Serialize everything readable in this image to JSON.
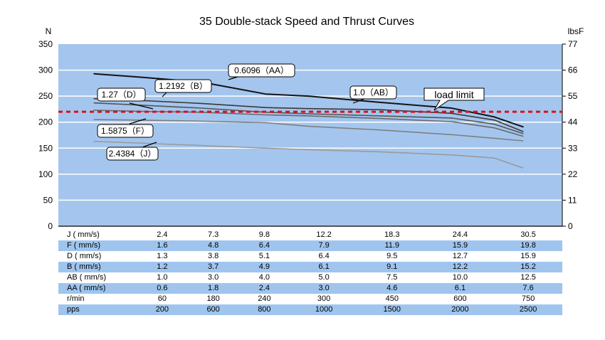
{
  "chart_data": {
    "type": "line",
    "title": "35 Double-stack Speed and Thrust Curves",
    "ylabel_left": "N",
    "ylabel_right": "lbsF",
    "ylim": [
      0,
      350
    ],
    "yticks_left": [
      0,
      50,
      100,
      150,
      200,
      250,
      300,
      350
    ],
    "yticks_right": [
      "0",
      "11",
      "22",
      "33",
      "44",
      "55",
      "66",
      "77"
    ],
    "x_positions": [
      1,
      2,
      3,
      4,
      5,
      6,
      7
    ],
    "xlim": [
      0.5,
      7.55
    ],
    "grid": true,
    "load_limit": {
      "label": "load limit",
      "value": 220
    },
    "series": [
      {
        "name": "0.6096 (AA)",
        "color": "#141414",
        "x": [
          1,
          1.6,
          2.5,
          3.4,
          4,
          5,
          6,
          6.6,
          7
        ],
        "y": [
          293,
          287,
          277,
          254,
          250,
          238,
          227,
          210,
          191
        ]
      },
      {
        "name": "1.0 (AB)",
        "color": "#3a3a3a",
        "x": [
          1,
          1.6,
          2.5,
          3.4,
          4,
          5,
          6,
          6.6,
          7
        ],
        "y": [
          245,
          242,
          236,
          228,
          226,
          224,
          217,
          204,
          182
        ]
      },
      {
        "name": "1.2192 (B)",
        "color": "#555555",
        "x": [
          1,
          1.6,
          2.5,
          3.4,
          4,
          5,
          6,
          6.6,
          7
        ],
        "y": [
          237,
          233,
          227,
          219,
          216,
          212,
          208,
          196,
          178
        ]
      },
      {
        "name": "1.27 (D)",
        "color": "#6a6a6a",
        "x": [
          1,
          1.6,
          2.5,
          3.4,
          4,
          5,
          6,
          6.6,
          7
        ],
        "y": [
          223,
          221,
          219,
          214,
          212,
          207,
          201,
          189,
          173
        ]
      },
      {
        "name": "1.5875 (F)",
        "color": "#808080",
        "x": [
          1,
          1.6,
          2.5,
          3.4,
          4,
          5,
          6,
          6.6,
          7
        ],
        "y": [
          205,
          204,
          202,
          199,
          192,
          185,
          176,
          169,
          164
        ]
      },
      {
        "name": "2.4384 (J)",
        "color": "#9a9a9a",
        "x": [
          1,
          1.6,
          2.5,
          3.4,
          4,
          5,
          6,
          6.6,
          7
        ],
        "y": [
          163,
          160,
          155,
          150,
          147,
          143,
          137,
          131,
          112
        ]
      }
    ],
    "annotations": [
      {
        "text": "0.6096（AA）",
        "series": "0.6096 (AA)"
      },
      {
        "text": "1.2192（B）",
        "series": "1.2192 (B)"
      },
      {
        "text": "1.27（D）",
        "series": "1.27 (D)"
      },
      {
        "text": "1.0（AB）",
        "series": "1.0 (AB)"
      },
      {
        "text": "1.5875（F）",
        "series": "1.5875 (F)"
      },
      {
        "text": "2.4384（J）",
        "series": "2.4384 (J)"
      }
    ],
    "speed_table": [
      {
        "label": "J ( mm/s)",
        "values": [
          "2.4",
          "7.3",
          "9.8",
          "12.2",
          "18.3",
          "24.4",
          "30.5"
        ]
      },
      {
        "label": "F ( mm/s)",
        "values": [
          "1.6",
          "4.8",
          "6.4",
          "7.9",
          "11.9",
          "15.9",
          "19.8"
        ]
      },
      {
        "label": "D ( mm/s)",
        "values": [
          "1.3",
          "3.8",
          "5.1",
          "6.4",
          "9.5",
          "12.7",
          "15.9"
        ]
      },
      {
        "label": "B ( mm/s)",
        "values": [
          "1.2",
          "3.7",
          "4.9",
          "6.1",
          "9.1",
          "12.2",
          "15.2"
        ]
      },
      {
        "label": "AB ( mm/s)",
        "values": [
          "1.0",
          "3.0",
          "4.0",
          "5.0",
          "7.5",
          "10.0",
          "12.5"
        ]
      },
      {
        "label": "AA ( mm/s)",
        "values": [
          "0.6",
          "1.8",
          "2.4",
          "3.0",
          "4.6",
          "6.1",
          "7.6"
        ]
      },
      {
        "label": "r/min",
        "values": [
          "60",
          "180",
          "240",
          "300",
          "450",
          "600",
          "750"
        ]
      },
      {
        "label": "pps",
        "values": [
          "200",
          "600",
          "800",
          "1000",
          "1500",
          "2000",
          "2500"
        ]
      }
    ],
    "colors": {
      "plot_background": "#a4c6ee",
      "grid": "#ffffff",
      "load_limit": "#d9101e",
      "table_stripe": "#9fc5ee"
    }
  }
}
